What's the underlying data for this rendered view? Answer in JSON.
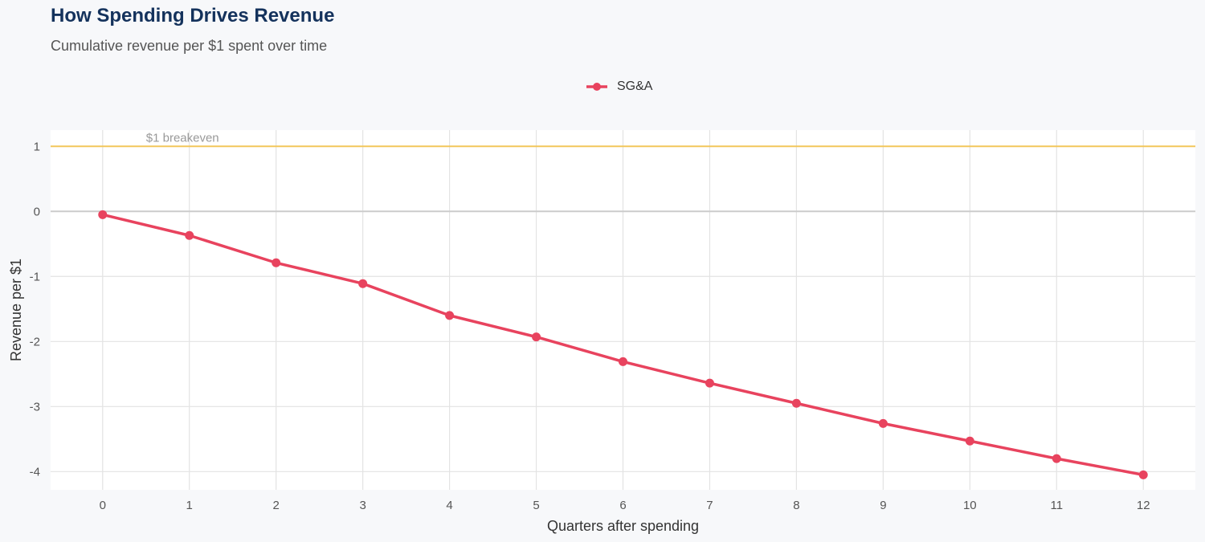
{
  "chart_data": {
    "type": "line",
    "title": "How Spending Drives Revenue",
    "subtitle": "Cumulative revenue per $1 spent over time",
    "xlabel": "Quarters after spending",
    "ylabel": "Revenue per $1",
    "x": [
      0,
      1,
      2,
      3,
      4,
      5,
      6,
      7,
      8,
      9,
      10,
      11,
      12
    ],
    "series": [
      {
        "name": "SG&A",
        "color": "#e8435e",
        "values": [
          -0.05,
          -0.37,
          -0.79,
          -1.11,
          -1.6,
          -1.93,
          -2.31,
          -2.64,
          -2.95,
          -3.26,
          -3.53,
          -3.8,
          -4.05
        ]
      }
    ],
    "xlim": [
      -0.6,
      12.6
    ],
    "ylim": [
      -4.28,
      1.25
    ],
    "x_ticks": [
      "0",
      "1",
      "2",
      "3",
      "4",
      "5",
      "6",
      "7",
      "8",
      "9",
      "10",
      "11",
      "12"
    ],
    "y_ticks": [
      1,
      0,
      -1,
      -2,
      -3,
      -4
    ],
    "y_tick_labels": [
      "1",
      "0",
      "-1",
      "-2",
      "-3",
      "-4"
    ],
    "reference_line": {
      "y": 1,
      "label": "$1 breakeven",
      "color": "#f2c75c"
    },
    "zero_line_color": "#cccccc",
    "grid": true,
    "legend_position": "top"
  }
}
